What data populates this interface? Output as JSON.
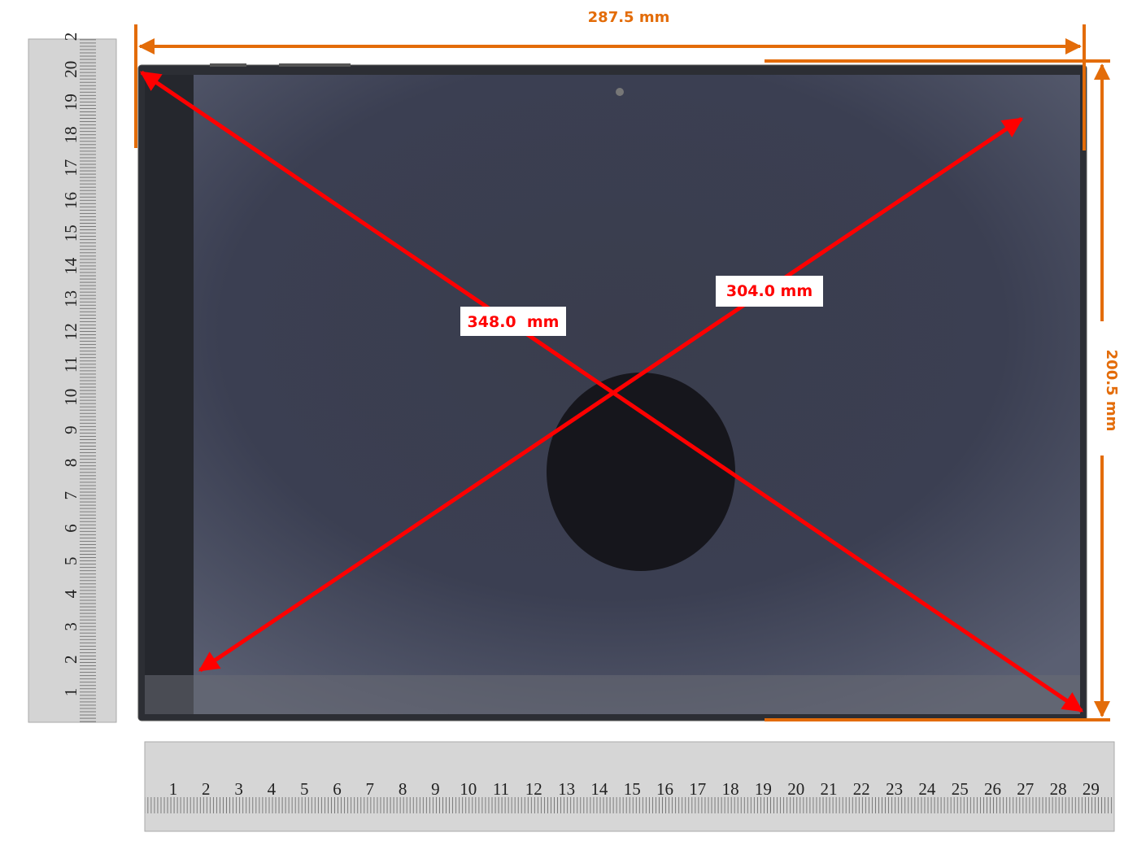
{
  "annotations": {
    "width": "287.5 mm",
    "height": "200.5 mm",
    "diagonal_main": "348.0  mm",
    "diagonal_other": "304.0 mm"
  },
  "left_ruler": {
    "numbers": [
      1,
      2,
      3,
      4,
      5,
      6,
      7,
      8,
      9,
      10,
      11,
      12,
      13,
      14,
      15,
      16,
      17,
      18,
      19,
      20,
      2
    ]
  },
  "bottom_ruler": {
    "numbers": [
      1,
      2,
      3,
      4,
      5,
      6,
      7,
      8,
      9,
      10,
      11,
      12,
      13,
      14,
      15,
      16,
      17,
      18,
      19,
      20,
      21,
      22,
      23,
      24,
      25,
      26,
      27,
      28,
      29
    ]
  }
}
